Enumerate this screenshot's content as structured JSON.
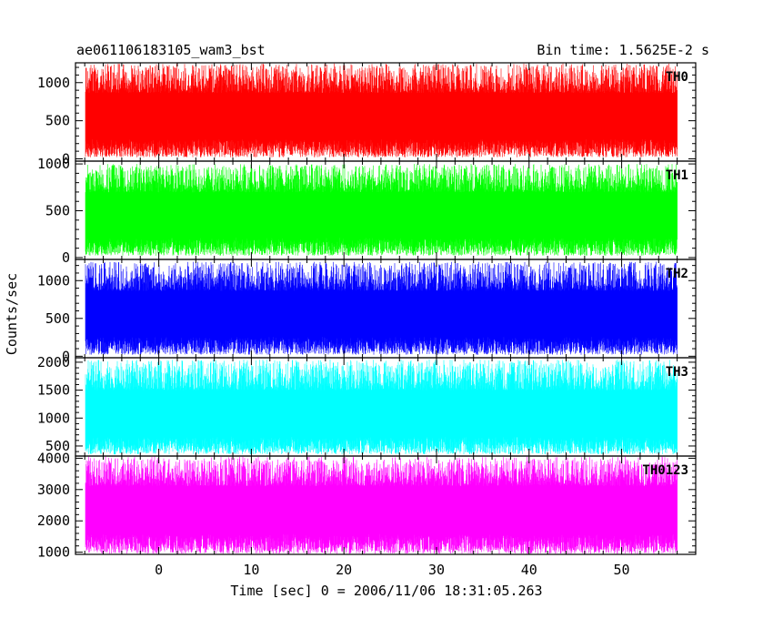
{
  "chart_data": {
    "type": "line",
    "title": "ae061106183105_wam3_bst",
    "subtitle": "Bin time: 1.5625E-2 s",
    "xlabel": "Time [sec] 0 = 2006/11/06 18:31:05.263",
    "ylabel": "Counts/sec",
    "xlim": [
      -9,
      58
    ],
    "x_ticks": [
      0,
      10,
      20,
      30,
      40,
      50
    ],
    "data_x_range": [
      -8,
      56
    ],
    "panels": [
      {
        "name": "TH0",
        "color": "#ff0000",
        "ylim": [
          -30,
          1260
        ],
        "y_ticks": [
          0,
          500,
          1000
        ],
        "approx_mean": 550,
        "approx_range": [
          20,
          1250
        ]
      },
      {
        "name": "TH1",
        "color": "#00ff00",
        "ylim": [
          -20,
          1030
        ],
        "y_ticks": [
          0,
          500,
          1000
        ],
        "approx_mean": 450,
        "approx_range": [
          20,
          1000
        ]
      },
      {
        "name": "TH2",
        "color": "#0000ff",
        "ylim": [
          -20,
          1280
        ],
        "y_ticks": [
          0,
          500,
          1000
        ],
        "approx_mean": 550,
        "approx_range": [
          20,
          1250
        ]
      },
      {
        "name": "TH3",
        "color": "#00ffff",
        "ylim": [
          320,
          2080
        ],
        "y_ticks": [
          500,
          1000,
          1500,
          2000
        ],
        "approx_mean": 1050,
        "approx_range": [
          350,
          2050
        ]
      },
      {
        "name": "TH0123",
        "color": "#ff00ff",
        "ylim": [
          930,
          4070
        ],
        "y_ticks": [
          1000,
          2000,
          3000,
          4000
        ],
        "approx_mean": 2350,
        "approx_range": [
          950,
          4050
        ]
      }
    ]
  }
}
